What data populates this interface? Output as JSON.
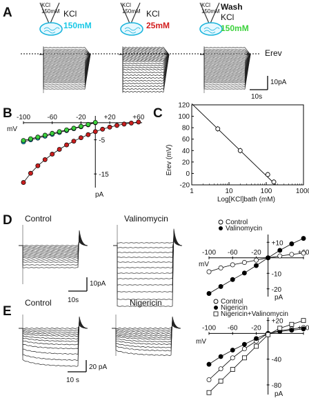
{
  "figure": {
    "panels": {
      "A": {
        "label": "A",
        "pipette_text": "KCl\n150mM",
        "conditions": [
          {
            "line1": "",
            "kcl": "KCl",
            "conc": "150mM",
            "color": "#19c8e6"
          },
          {
            "line1": "",
            "kcl": "KCl",
            "conc": "25mM",
            "color": "#d21e1e"
          },
          {
            "line1": "Wash",
            "kcl": "KCl",
            "conc": "150mM",
            "color": "#3cd23c"
          }
        ],
        "erev_label": "Erev",
        "scale_y": "10pA",
        "scale_x": "10s"
      },
      "B": {
        "label": "B",
        "xlabel": "mV",
        "ylabel": "pA",
        "x_ticks": [
          "-100",
          "-60",
          "-20",
          "+20",
          "+60"
        ],
        "y_ticks": [
          "-5",
          "-15"
        ]
      },
      "C": {
        "label": "C",
        "ylabel": "Erev (mV)",
        "xlabel": "Log[KCl]bath (mM)",
        "y_ticks": [
          "120",
          "100",
          "80",
          "60",
          "40",
          "20",
          "0",
          "-20"
        ],
        "x_ticks": [
          "1",
          "10",
          "100",
          "1000"
        ]
      },
      "D": {
        "label": "D",
        "trace_titles": [
          "Control",
          "Valinomycin"
        ],
        "scale_y": "10pA",
        "scale_x": "10s",
        "legend": [
          "Control",
          "Valinomycin"
        ],
        "xlabel": "mV",
        "ylabel": "pA",
        "x_ticks": [
          "-100",
          "-60",
          "-20",
          "+60"
        ],
        "y_ticks": [
          "+10",
          "-10",
          "-20"
        ]
      },
      "E": {
        "label": "E",
        "trace_titles": [
          "Control",
          "Nigericin"
        ],
        "scale_y": "20 pA",
        "scale_x": "10 s",
        "legend": [
          "Control",
          "Nigericin",
          "Nigericin+Valinomycin"
        ],
        "xlabel": "mV",
        "ylabel": "pA",
        "x_ticks": [
          "-100",
          "-60",
          "-20",
          "+60"
        ],
        "y_ticks": [
          "+20",
          "-40",
          "-80"
        ]
      }
    }
  },
  "chart_data": [
    {
      "type": "scatter",
      "panel": "B",
      "xlabel": "mV",
      "ylabel": "pA",
      "xlim": [
        -100,
        65
      ],
      "ylim": [
        -19,
        2
      ],
      "series": [
        {
          "name": "KCl 150mM",
          "color": "#19c8e6",
          "x": [
            -100,
            -90,
            -80,
            -70,
            -60,
            -50,
            -40,
            -30,
            -20,
            -10,
            0
          ],
          "y": [
            -5.6,
            -5.0,
            -4.5,
            -3.95,
            -3.4,
            -2.85,
            -2.3,
            -1.75,
            -1.2,
            -0.6,
            0
          ]
        },
        {
          "name": "Wash KCl 150mM",
          "color": "#3cd23c",
          "x": [
            -100,
            -90,
            -80,
            -70,
            -60,
            -50,
            -40,
            -30,
            -20,
            -10,
            0
          ],
          "y": [
            -5.2,
            -4.7,
            -4.2,
            -3.65,
            -3.1,
            -2.6,
            -2.1,
            -1.6,
            -1.05,
            -0.5,
            0.1
          ]
        },
        {
          "name": "KCl 25mM",
          "color": "#c81e1e",
          "x": [
            -100,
            -90,
            -80,
            -70,
            -60,
            -50,
            -40,
            -30,
            -20,
            -10,
            0,
            10,
            20,
            30,
            40,
            50,
            60
          ],
          "y": [
            -17.5,
            -14.8,
            -12.6,
            -10.8,
            -9.2,
            -7.8,
            -6.5,
            -5.4,
            -4.4,
            -3.5,
            -2.6,
            -1.9,
            -1.3,
            -0.8,
            -0.4,
            -0.1,
            0.2
          ]
        }
      ]
    },
    {
      "type": "scatter",
      "panel": "C",
      "xlabel": "Log[KCl]bath (mM)",
      "ylabel": "Erev (mV)",
      "xscale": "log",
      "xlim": [
        1,
        1000
      ],
      "ylim": [
        -20,
        120
      ],
      "series": [
        {
          "name": "Erev",
          "x": [
            5,
            20,
            110,
            160
          ],
          "y": [
            78,
            40,
            -2,
            -15
          ]
        }
      ],
      "fit_line": {
        "x": [
          1,
          180
        ],
        "y": [
          122,
          -20
        ]
      }
    },
    {
      "type": "scatter",
      "panel": "D",
      "xlabel": "mV",
      "ylabel": "pA",
      "xlim": [
        -100,
        60
      ],
      "ylim": [
        -25,
        15
      ],
      "series": [
        {
          "name": "Control",
          "filled": false,
          "x": [
            -100,
            -80,
            -60,
            -40,
            -20,
            0,
            20,
            40,
            60
          ],
          "y": [
            -9,
            -6.5,
            -4.5,
            -3,
            -1.5,
            0,
            1.2,
            2.2,
            3
          ]
        },
        {
          "name": "Valinomycin",
          "filled": true,
          "x": [
            -100,
            -80,
            -60,
            -40,
            -20,
            0,
            20,
            40,
            60
          ],
          "y": [
            -23,
            -18.5,
            -14,
            -9.8,
            -5,
            0,
            4.8,
            9,
            12.5
          ]
        }
      ]
    },
    {
      "type": "scatter",
      "panel": "E",
      "xlabel": "mV",
      "ylabel": "pA",
      "xlim": [
        -100,
        60
      ],
      "ylim": [
        -95,
        25
      ],
      "series": [
        {
          "name": "Control",
          "marker": "circle-open",
          "x": [
            -100,
            -80,
            -60,
            -40,
            -20,
            0,
            20,
            40,
            60
          ],
          "y": [
            -72,
            -55,
            -38,
            -24,
            -12,
            0,
            4,
            7,
            9
          ]
        },
        {
          "name": "Nigericin",
          "marker": "circle-filled",
          "x": [
            -100,
            -80,
            -60,
            -40,
            -20,
            0,
            20,
            40,
            60
          ],
          "y": [
            -48,
            -36,
            -26,
            -17,
            -8,
            0,
            3,
            5,
            7
          ]
        },
        {
          "name": "Nigericin+Valinomycin",
          "marker": "square-open",
          "x": [
            -100,
            -80,
            -60,
            -40,
            -20,
            0,
            20,
            40,
            60
          ],
          "y": [
            -92,
            -74,
            -56,
            -38,
            -20,
            -2,
            8,
            14,
            20
          ]
        }
      ]
    }
  ]
}
